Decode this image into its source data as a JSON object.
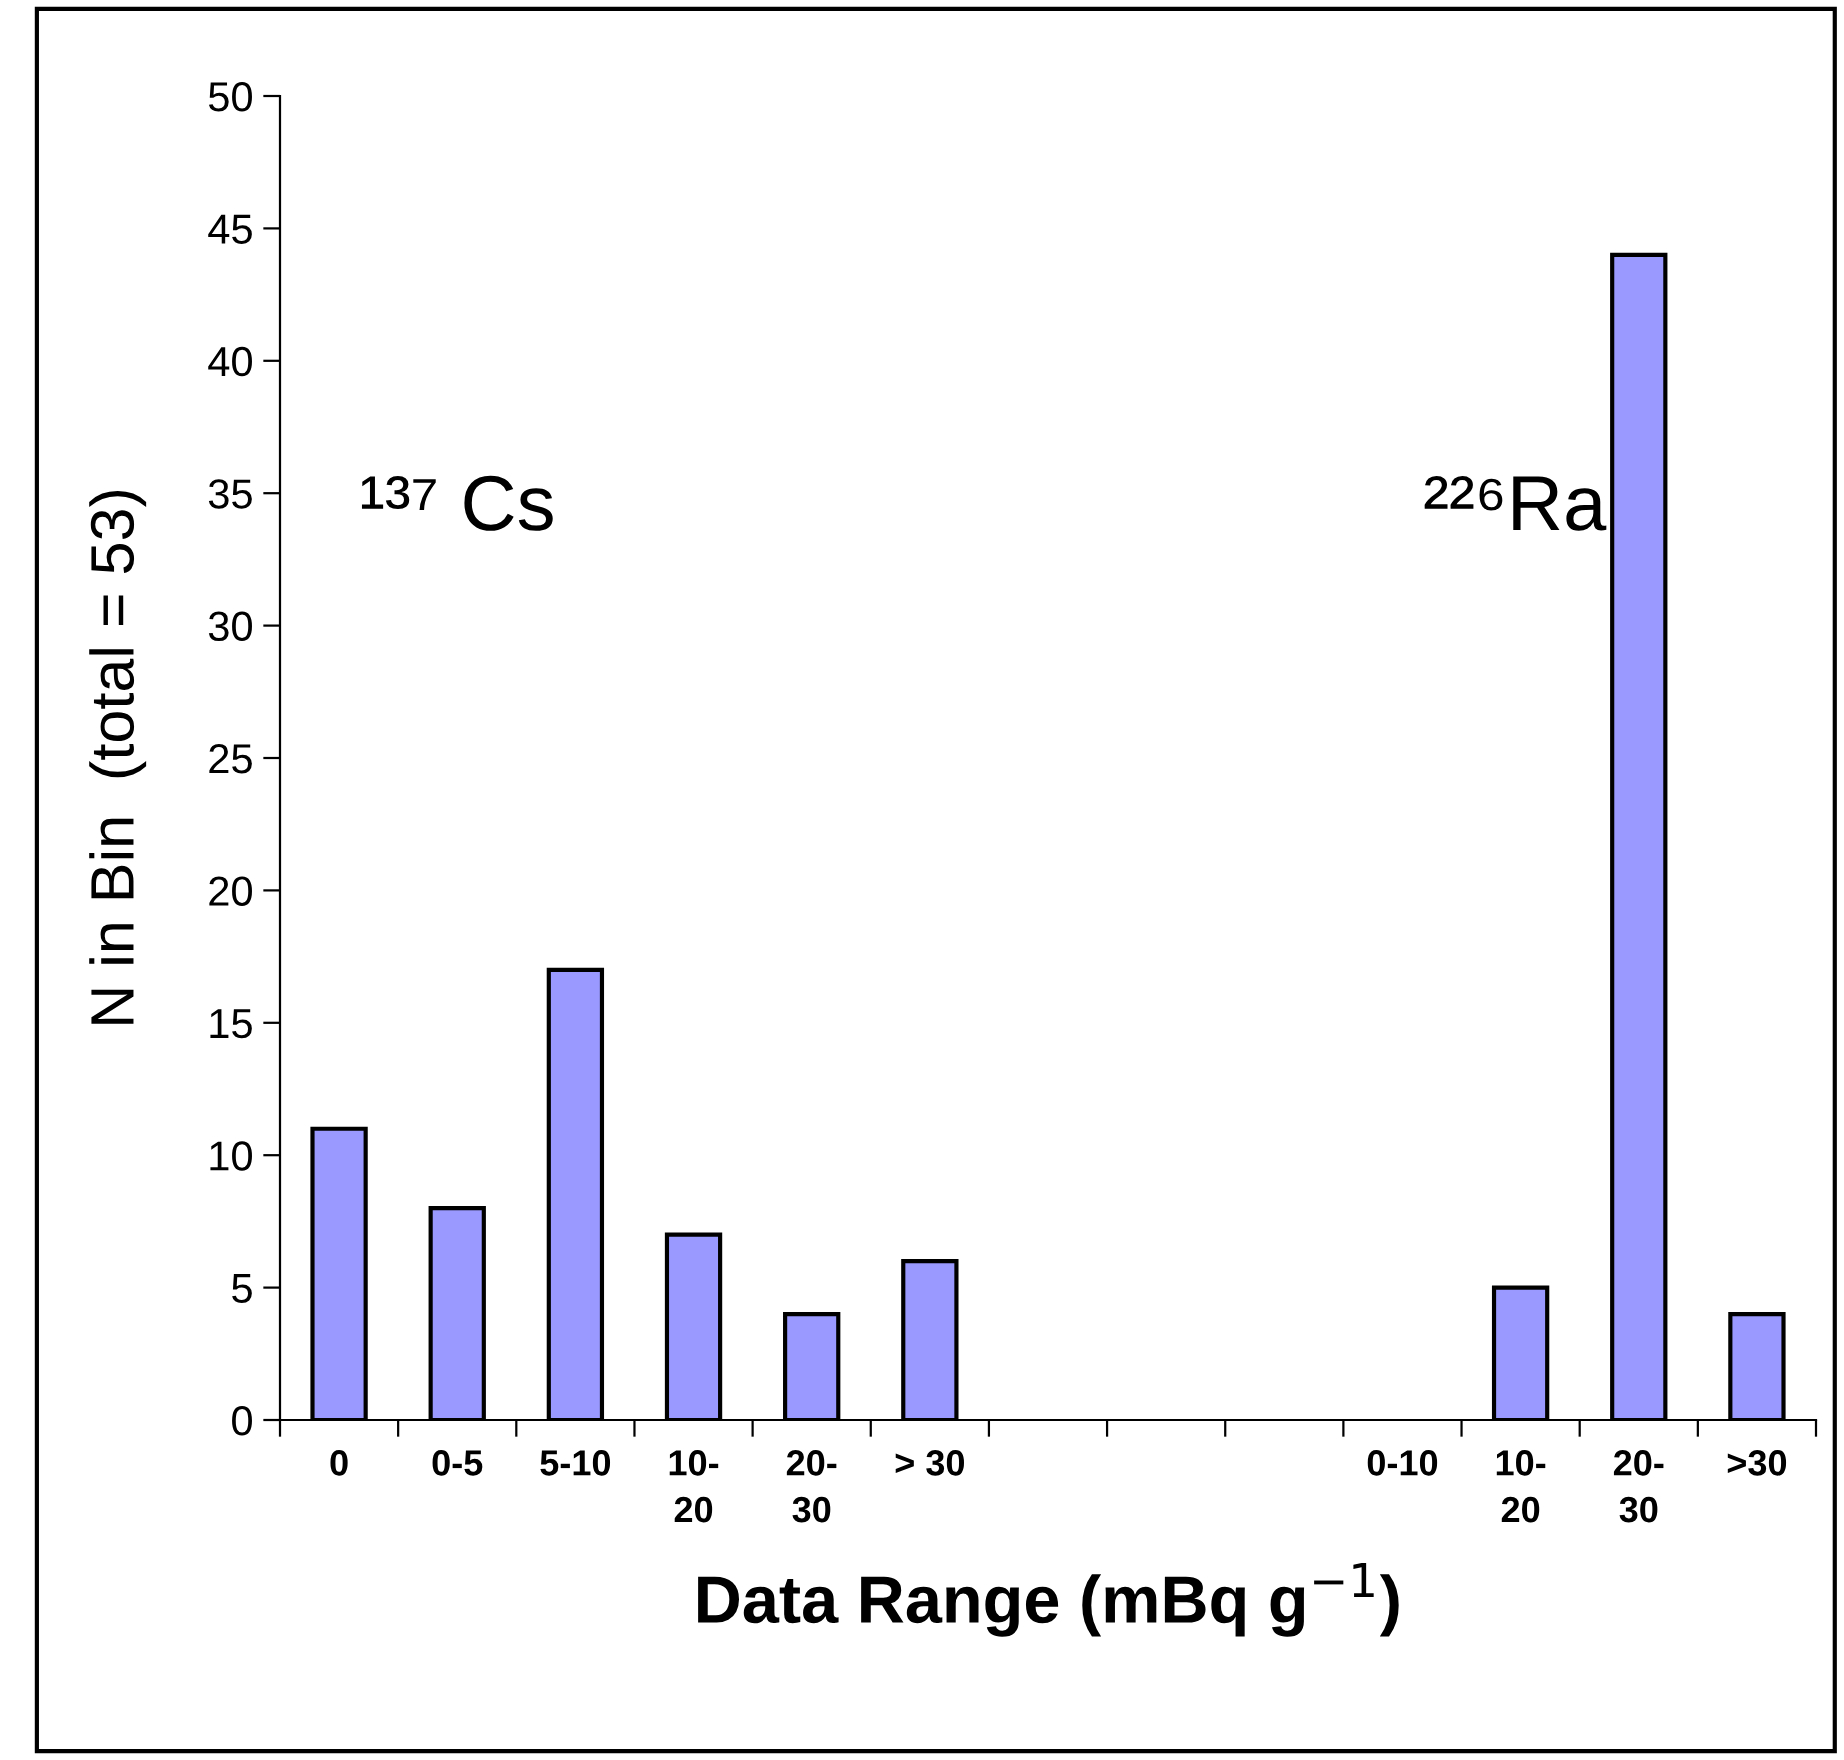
{
  "chart_data": {
    "type": "bar",
    "xlabel": "Data Range (mBq g$^{−1}$)",
    "ylabel": "N in Bin  (total = 53)",
    "categories": [
      "0",
      "0-5",
      "5-10",
      "10-\n20",
      "20-\n30",
      "> 30",
      null,
      null,
      null,
      "0-10",
      "10-\n20",
      "20-\n30",
      ">30"
    ],
    "values": [
      11,
      8,
      17,
      7,
      4,
      6,
      null,
      null,
      null,
      null,
      5,
      44,
      4
    ],
    "color": "#9999ff",
    "ylim": [
      0,
      50
    ],
    "yticks": [
      0,
      5,
      10,
      15,
      20,
      25,
      30,
      35,
      40,
      45,
      50
    ],
    "grid": false,
    "legend": false,
    "annotations": [
      "¹³⁷ Cs",
      "²²⁶Ra"
    ]
  }
}
